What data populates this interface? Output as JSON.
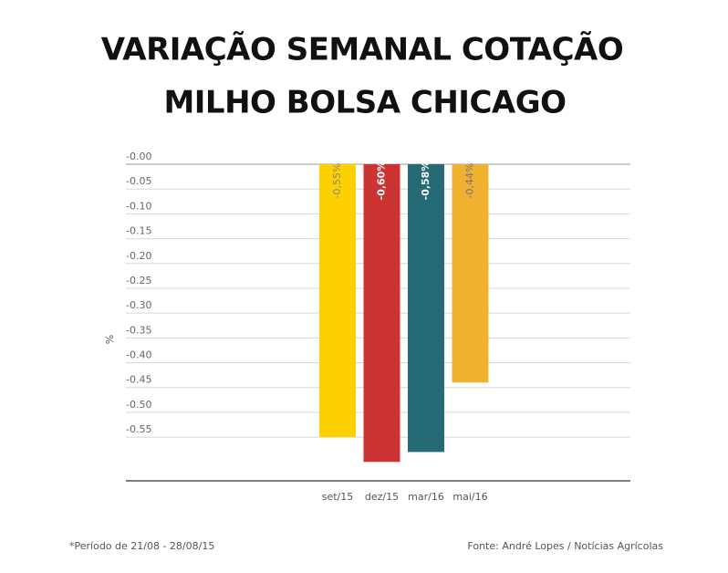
{
  "chart_data": {
    "type": "bar",
    "title": [
      "VARIAÇÃO SEMANAL COTAÇÃO",
      "MILHO BOLSA CHICAGO"
    ],
    "y_label": "%",
    "categories": [
      "set/15",
      "dez/15",
      "mar/16",
      "mai/16"
    ],
    "values": [
      -0.55,
      -0.6,
      -0.58,
      -0.44
    ],
    "value_labels": [
      "-0,55%",
      "-0,60%",
      "-0,58%",
      "-0,44%"
    ],
    "colors": [
      "#fdd000",
      "#cc3433",
      "#266a75",
      "#f0b030"
    ],
    "ylim": [
      -0.64,
      0
    ],
    "yticks": [
      {
        "value": 0,
        "label": "-0.00"
      },
      {
        "value": -0.05,
        "label": "-0.05"
      },
      {
        "value": -0.1,
        "label": "-0.10"
      },
      {
        "value": -0.15,
        "label": "-0.15"
      },
      {
        "value": -0.2,
        "label": "-0.20"
      },
      {
        "value": -0.25,
        "label": "-0.25"
      },
      {
        "value": -0.3,
        "label": "-0.30"
      },
      {
        "value": -0.35,
        "label": "-0.35"
      },
      {
        "value": -0.4,
        "label": "-0.40"
      },
      {
        "value": -0.45,
        "label": "-0.45"
      },
      {
        "value": -0.5,
        "label": "-0.50"
      },
      {
        "value": -0.55,
        "label": "-0.55"
      }
    ],
    "grid": true,
    "footnote": "*Período de 21/08 - 28/08/15",
    "source": "Fonte: André Lopes / Notícias Agrícolas"
  }
}
